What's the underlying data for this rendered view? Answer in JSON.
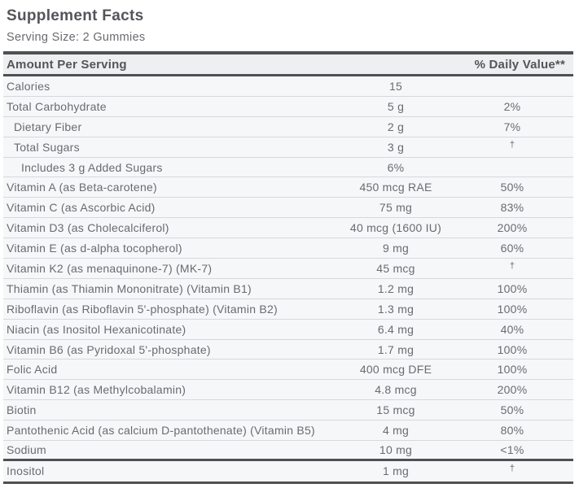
{
  "label": {
    "title": "Supplement Facts",
    "serving_size": "Serving Size: 2 Gummies",
    "columns": {
      "amount_header": "Amount Per Serving",
      "dv_header": "% Daily Value**"
    },
    "rows": [
      {
        "name": "Calories",
        "amount": "15",
        "dv": "",
        "indent": 0
      },
      {
        "name": "Total Carbohydrate",
        "amount": "5 g",
        "dv": "2%",
        "indent": 0
      },
      {
        "name": "Dietary Fiber",
        "amount": "2 g",
        "dv": "7%",
        "indent": 1
      },
      {
        "name": "Total Sugars",
        "amount": "3 g",
        "dv": "†",
        "indent": 1
      },
      {
        "name": "Includes 3 g Added Sugars",
        "amount": "6%",
        "dv": "",
        "indent": 2
      },
      {
        "name": "Vitamin A (as Beta-carotene)",
        "amount": "450 mcg RAE",
        "dv": "50%",
        "indent": 0
      },
      {
        "name": "Vitamin C (as Ascorbic Acid)",
        "amount": "75 mg",
        "dv": "83%",
        "indent": 0
      },
      {
        "name": "Vitamin D3 (as Cholecalciferol)",
        "amount": "40 mcg (1600 IU)",
        "dv": "200%",
        "indent": 0
      },
      {
        "name": "Vitamin E (as d-alpha tocopherol)",
        "amount": "9 mg",
        "dv": "60%",
        "indent": 0
      },
      {
        "name": "Vitamin K2 (as menaquinone-7) (MK-7)",
        "amount": "45 mcg",
        "dv": "†",
        "indent": 0
      },
      {
        "name": "Thiamin (as Thiamin Mononitrate) (Vitamin B1)",
        "amount": "1.2 mg",
        "dv": "100%",
        "indent": 0
      },
      {
        "name": "Riboflavin (as Riboflavin 5'-phosphate) (Vitamin B2)",
        "amount": "1.3 mg",
        "dv": "100%",
        "indent": 0
      },
      {
        "name": "Niacin (as Inositol Hexanicotinate)",
        "amount": "6.4 mg",
        "dv": "40%",
        "indent": 0
      },
      {
        "name": "Vitamin B6 (as Pyridoxal 5'-phosphate)",
        "amount": "1.7 mg",
        "dv": "100%",
        "indent": 0
      },
      {
        "name": "Folic Acid",
        "amount": "400 mcg DFE",
        "dv": "100%",
        "indent": 0
      },
      {
        "name": "Vitamin B12 (as Methylcobalamin)",
        "amount": "4.8 mcg",
        "dv": "200%",
        "indent": 0
      },
      {
        "name": "Biotin",
        "amount": "15 mcg",
        "dv": "50%",
        "indent": 0
      },
      {
        "name": "Pantothenic Acid (as calcium D-pantothenate) (Vitamin B5)",
        "amount": "4 mg",
        "dv": "80%",
        "indent": 0
      },
      {
        "name": "Sodium",
        "amount": "10 mg",
        "dv": "<1%",
        "indent": 0,
        "thick_after": true
      },
      {
        "name": "Inositol",
        "amount": "1 mg",
        "dv": "†",
        "indent": 0
      }
    ],
    "colors": {
      "bar": "#4f5054",
      "row_bg": "#f6f7f9",
      "header_bg": "#edeff0",
      "line": "#d7d8da",
      "title_text": "#54555a",
      "body_text": "#696b6f"
    }
  }
}
